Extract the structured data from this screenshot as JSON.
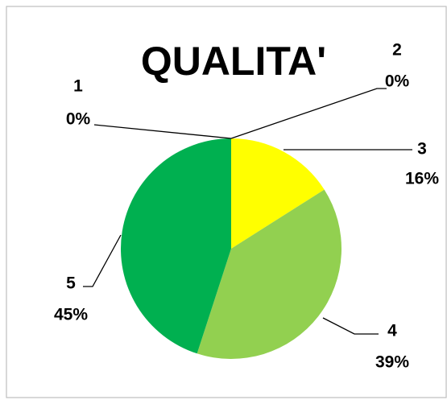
{
  "chart_data": {
    "type": "pie",
    "title": "QUALITA'",
    "categories": [
      "1",
      "2",
      "3",
      "4",
      "5"
    ],
    "values": [
      0,
      0,
      16,
      39,
      45
    ],
    "value_labels": [
      "0%",
      "0%",
      "16%",
      "39%",
      "45%"
    ],
    "colors": [
      "#ff0000",
      "#ffc000",
      "#ffff00",
      "#92d050",
      "#00b050"
    ]
  }
}
